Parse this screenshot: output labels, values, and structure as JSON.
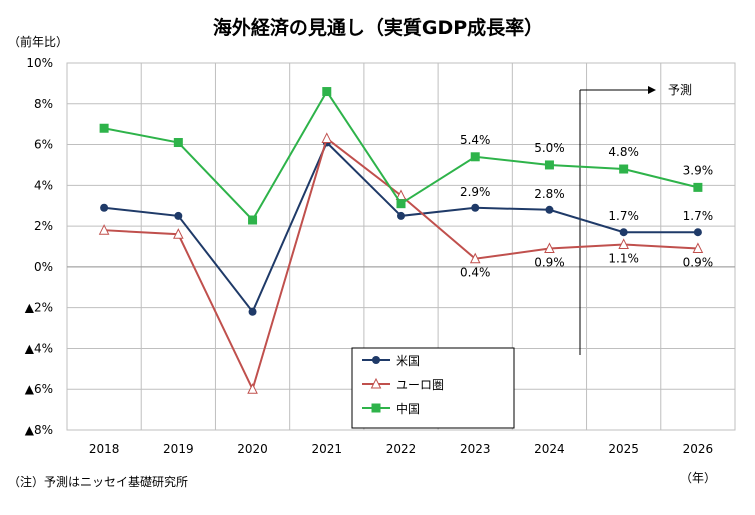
{
  "chart_data": {
    "type": "line",
    "title": "海外経済の見通し（実質GDP成長率）",
    "ylabel": "（前年比）",
    "xlabel": "（年）",
    "note": "（注）予測はニッセイ基礎研究所",
    "forecast_label": "予測",
    "categories": [
      "2018",
      "2019",
      "2020",
      "2021",
      "2022",
      "2023",
      "2024",
      "2025",
      "2026"
    ],
    "ylim": [
      -8,
      10
    ],
    "y_ticks": [
      {
        "value": 10,
        "label": "10%"
      },
      {
        "value": 8,
        "label": "8%"
      },
      {
        "value": 6,
        "label": "6%"
      },
      {
        "value": 4,
        "label": "4%"
      },
      {
        "value": 2,
        "label": "2%"
      },
      {
        "value": 0,
        "label": "0%"
      },
      {
        "value": -2,
        "label": "▲2%"
      },
      {
        "value": -4,
        "label": "▲4%"
      },
      {
        "value": -6,
        "label": "▲6%"
      },
      {
        "value": -8,
        "label": "▲8%"
      }
    ],
    "grid": true,
    "legend_position": "bottom-center",
    "series": [
      {
        "name": "米国",
        "color": "#1f3a68",
        "marker": "circle",
        "values": [
          2.9,
          2.5,
          -2.2,
          6.1,
          2.5,
          2.9,
          2.8,
          1.7,
          1.7
        ],
        "data_labels": [
          null,
          null,
          null,
          null,
          null,
          "2.9%",
          "2.8%",
          "1.7%",
          "1.7%"
        ]
      },
      {
        "name": "ユーロ圏",
        "color": "#c0504d",
        "marker": "triangle-open",
        "values": [
          1.8,
          1.6,
          -6.0,
          6.3,
          3.5,
          0.4,
          0.9,
          1.1,
          0.9
        ],
        "data_labels": [
          null,
          null,
          null,
          null,
          null,
          "0.4%",
          "0.9%",
          "1.1%",
          "0.9%"
        ]
      },
      {
        "name": "中国",
        "color": "#2eb34a",
        "marker": "square",
        "values": [
          6.8,
          6.1,
          2.3,
          8.6,
          3.1,
          5.4,
          5.0,
          4.8,
          3.9
        ],
        "data_labels": [
          null,
          null,
          null,
          null,
          null,
          "5.4%",
          "5.0%",
          "4.8%",
          "3.9%"
        ]
      }
    ]
  }
}
